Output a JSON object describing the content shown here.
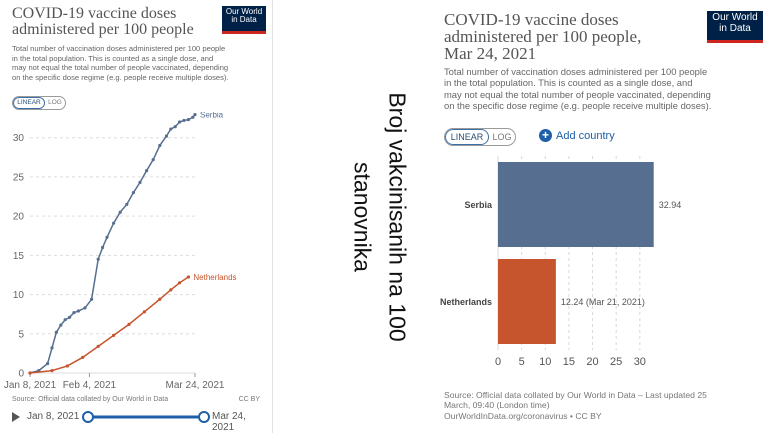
{
  "caption": {
    "line1": "Broj vakcinisanih na 100",
    "line2": "stanovnika"
  },
  "colors": {
    "serbia": "#566e8f",
    "netherlands": "#c6542c",
    "accent": "#1d5fa8",
    "logo_bg": "#002147",
    "logo_stripe": "#ce261e"
  },
  "left": {
    "title_line1": "COVID-19 vaccine doses",
    "title_line2": "administered per 100 people",
    "subtitle_lines": [
      "Total number of vaccination doses administered per 100 people",
      "in the total population. This is counted as a single dose, and",
      "may not equal the total number of people vaccinated, depending",
      "on the specific dose regime (e.g. people receive multiple doses)."
    ],
    "logo_line1": "Our World",
    "logo_line2": "in Data",
    "toggle_linear": "LINEAR",
    "toggle_log": "LOG",
    "source": "Source: Official data collated by Our World in Data",
    "license": "CC BY",
    "timeline_start": "Jan 8, 2021",
    "timeline_end": "Mar 24, 2021",
    "play_icon": "play-icon"
  },
  "right": {
    "title_line1": "COVID-19 vaccine doses",
    "title_line2": "administered per 100 people,",
    "title_line3": "Mar 24, 2021",
    "subtitle_lines": [
      "Total number of vaccination doses administered per 100 people",
      "in the total population. This is counted as a single dose, and",
      "may not equal the total number of people vaccinated, depending",
      "on the specific dose regime (e.g. people receive multiple doses)."
    ],
    "logo_line1": "Our World",
    "logo_line2": "in Data",
    "toggle_linear": "LINEAR",
    "toggle_log": "LOG",
    "add_country": "Add country",
    "source_lines": [
      "Source: Official data collated by Our World in Data – Last updated 25",
      "March, 09:40 (London time)",
      "OurWorldInData.org/coronavirus • CC BY"
    ]
  },
  "chart_data": [
    {
      "type": "line",
      "title": "COVID-19 vaccine doses administered per 100 people",
      "xlabel": "",
      "ylabel": "",
      "x_ticks": [
        "Jan 8, 2021",
        "Feb 4, 2021",
        "Mar 24, 2021"
      ],
      "x_tick_days": [
        0,
        27,
        75
      ],
      "y_ticks": [
        "0",
        "5",
        "10",
        "15",
        "20",
        "25",
        "30"
      ],
      "ylim": [
        0,
        32
      ],
      "xlim_days": [
        0,
        75
      ],
      "grid": true,
      "series": [
        {
          "name": "Serbia",
          "x_days": [
            0,
            4,
            8,
            10,
            12,
            14,
            16,
            18,
            20,
            22,
            25,
            28,
            31,
            33,
            35,
            38,
            41,
            44,
            47,
            50,
            53,
            56,
            59,
            62,
            64,
            66,
            68,
            70,
            72,
            74,
            75
          ],
          "values": [
            0,
            0.3,
            1.2,
            3.2,
            5.2,
            6.1,
            6.8,
            7.1,
            7.7,
            7.9,
            8.3,
            9.4,
            14.5,
            16,
            17.3,
            19.1,
            20.5,
            21.5,
            23,
            24.3,
            25.8,
            27.2,
            29,
            30.2,
            31.1,
            31.4,
            32,
            32.2,
            32.3,
            32.6,
            32.94
          ]
        },
        {
          "name": "Netherlands",
          "x_days": [
            0,
            10,
            17,
            24,
            31,
            38,
            45,
            52,
            59,
            64,
            68,
            72
          ],
          "values": [
            0,
            0.3,
            0.9,
            2.0,
            3.4,
            4.8,
            6.2,
            7.8,
            9.4,
            10.6,
            11.5,
            12.24
          ]
        }
      ]
    },
    {
      "type": "bar",
      "orientation": "horizontal",
      "title": "COVID-19 vaccine doses administered per 100 people, Mar 24, 2021",
      "categories": [
        "Serbia",
        "Netherlands"
      ],
      "values": [
        32.94,
        12.24
      ],
      "value_labels": [
        "32.94",
        "12.24 (Mar 21, 2021)"
      ],
      "x_ticks": [
        "0",
        "5",
        "10",
        "15",
        "20",
        "25",
        "30"
      ],
      "xlim": [
        0,
        33
      ],
      "grid": true
    }
  ]
}
